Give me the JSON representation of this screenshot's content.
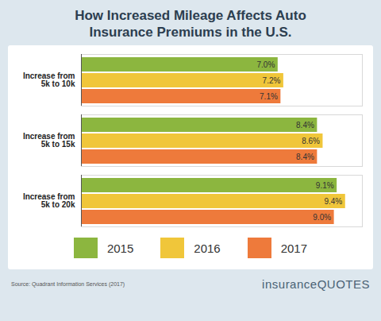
{
  "chart_data": {
    "type": "bar",
    "title": "How Increased Mileage Affects Auto Insurance Premiums in the U.S.",
    "orientation": "horizontal",
    "categories": [
      "Increase from\n5k to 10k",
      "Increase from\n5k to 15k",
      "Increase from\n5k to 20k"
    ],
    "series": [
      {
        "name": "2015",
        "color": "#8cb63f",
        "values": [
          7.0,
          8.4,
          9.1
        ],
        "value_labels": [
          "7.0%",
          "8.4%",
          "9.1%"
        ]
      },
      {
        "name": "2016",
        "color": "#f0c63a",
        "values": [
          7.2,
          8.6,
          9.4
        ],
        "value_labels": [
          "7.2%",
          "8.6%",
          "9.4%"
        ]
      },
      {
        "name": "2017",
        "color": "#ee7a3b",
        "values": [
          7.1,
          8.4,
          9.0
        ],
        "value_labels": [
          "7.1%",
          "8.4%",
          "9.0%"
        ]
      }
    ],
    "xlim": [
      0,
      10
    ],
    "tick_labels": false,
    "data_labels": true,
    "legend": "bottom",
    "caption": "Source: Quadrant Information Services (2017)",
    "annotations": [
      "insuranceQUOTES"
    ]
  }
}
